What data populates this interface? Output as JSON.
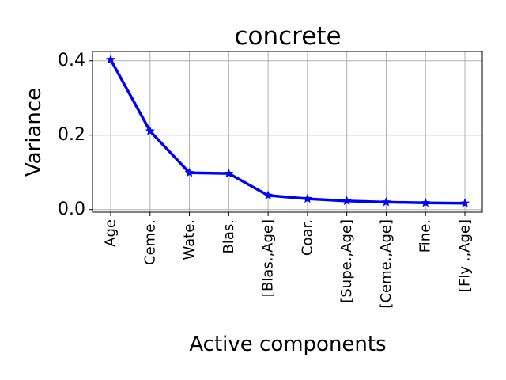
{
  "chart_data": {
    "type": "line",
    "title": "concrete",
    "xlabel": "Active components",
    "ylabel": "Variance",
    "categories": [
      "Age",
      "Ceme.",
      "Wate.",
      "Blas.",
      "[Blas.,Age]",
      "Coar.",
      "[Supe.,Age]",
      "[Ceme.,Age]",
      "Fine.",
      "[Fly .,Age]"
    ],
    "values": [
      0.403,
      0.211,
      0.099,
      0.097,
      0.038,
      0.029,
      0.023,
      0.02,
      0.018,
      0.017
    ],
    "ylim": [
      -0.007,
      0.425
    ],
    "yticks": [
      0.0,
      0.2,
      0.4
    ],
    "ytick_labels": [
      "0.0",
      "0.2",
      "0.4"
    ],
    "grid": true,
    "line_color": "#0000ff",
    "marker": "star"
  }
}
